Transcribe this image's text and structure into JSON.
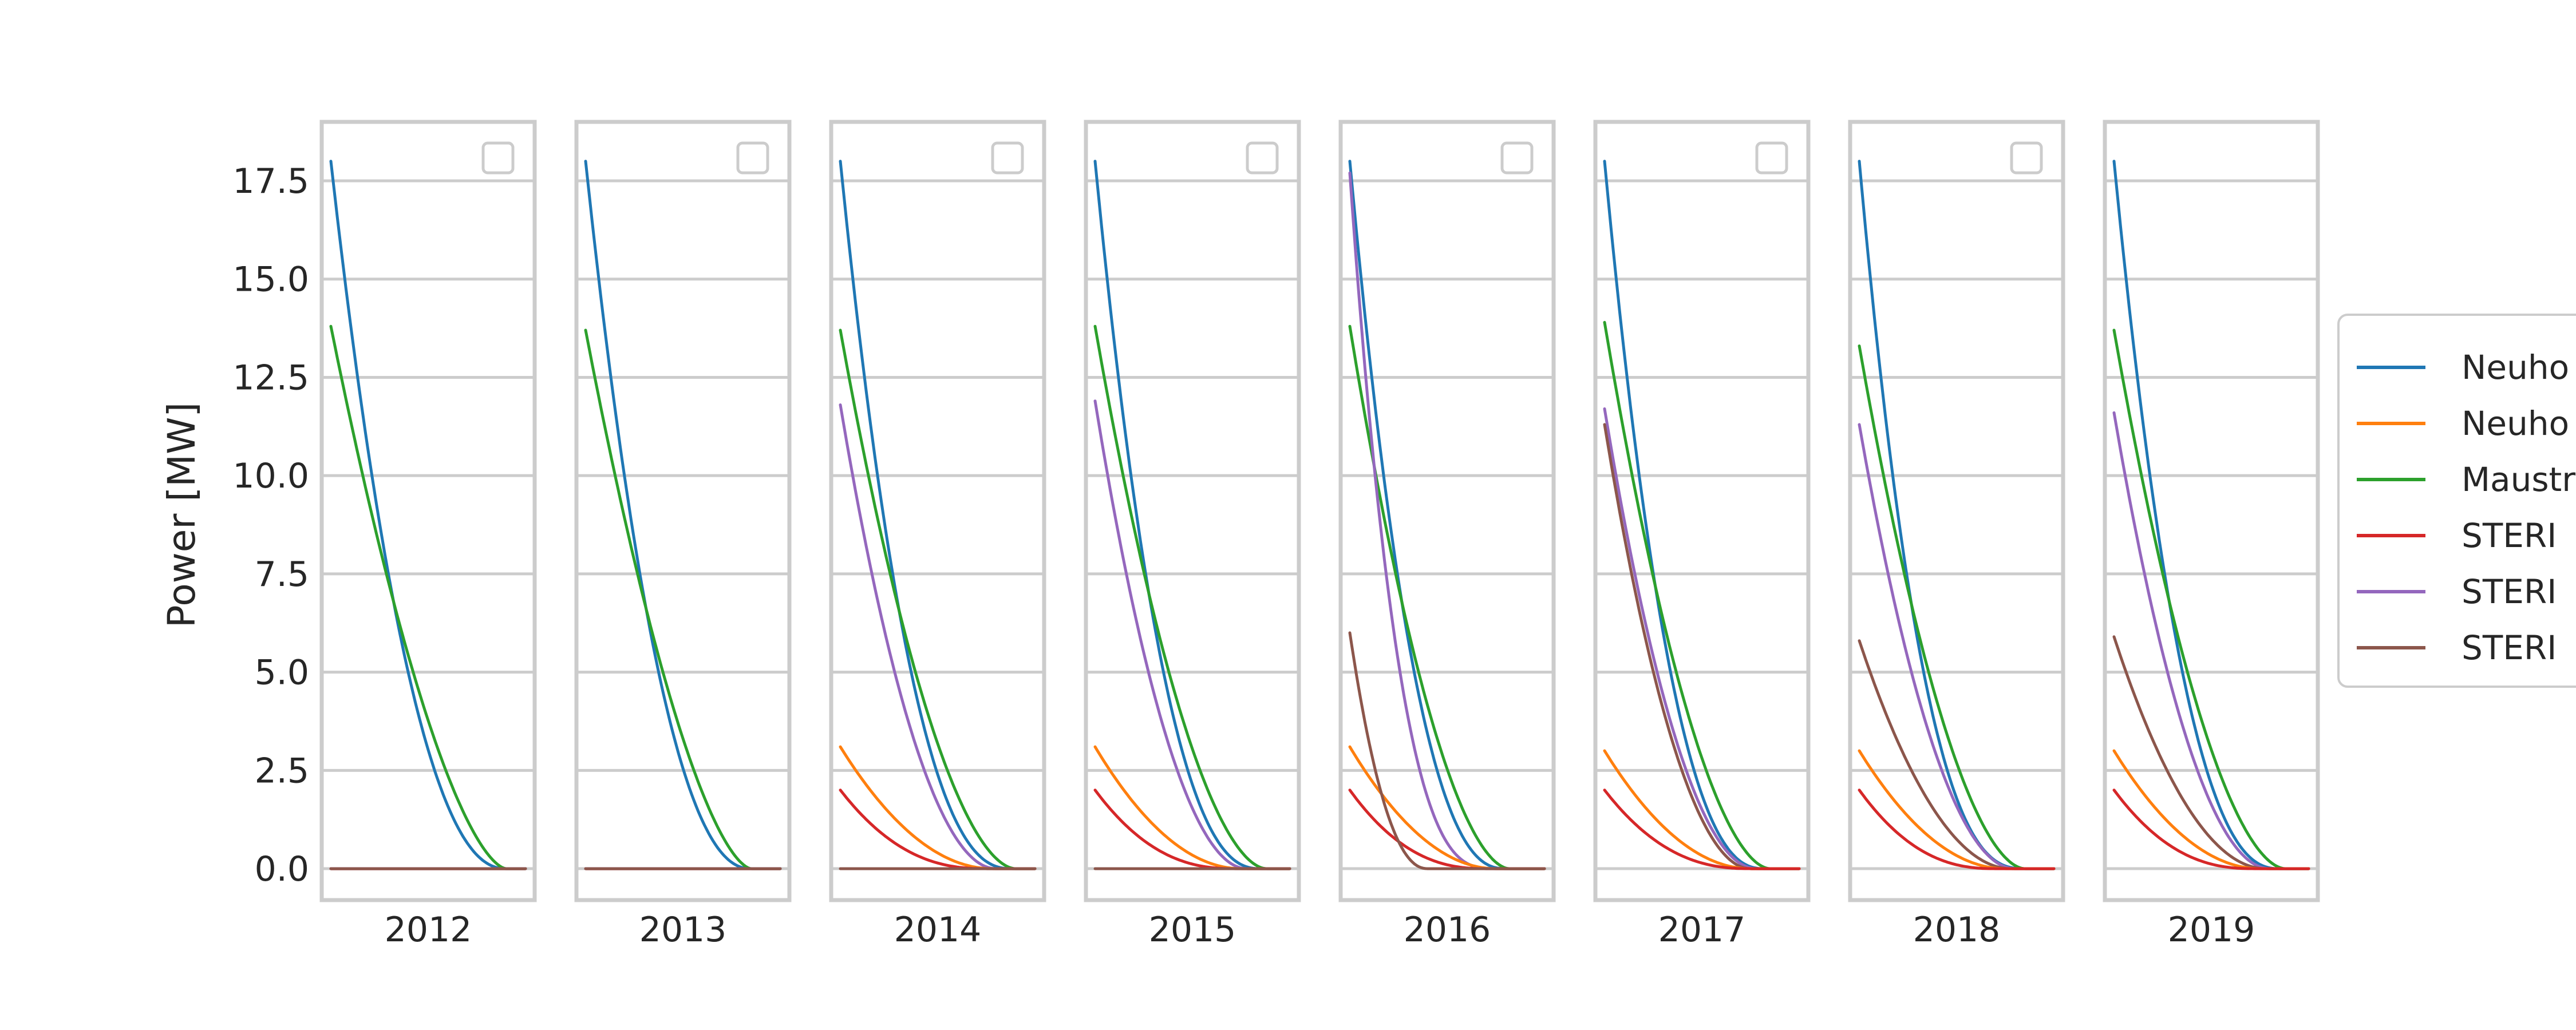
{
  "chart_data": {
    "type": "line",
    "ylabel": "Power [MW]",
    "ylim": [
      -0.8,
      19.0
    ],
    "yticks": [
      "0.0",
      "2.5",
      "5.0",
      "7.5",
      "10.0",
      "12.5",
      "15.0",
      "17.5"
    ],
    "ytick_values": [
      0,
      2.5,
      5,
      7.5,
      10,
      12.5,
      15,
      17.5
    ],
    "grid": true,
    "legend_position": "right",
    "series_styles": [
      {
        "name": "Neuho",
        "color": "#1f77b4"
      },
      {
        "name": "Neuho",
        "color": "#ff7f0e"
      },
      {
        "name": "Maustr",
        "color": "#2ca02c"
      },
      {
        "name": "STERI",
        "color": "#d62728"
      },
      {
        "name": "STERI",
        "color": "#9467bd"
      },
      {
        "name": "STERI",
        "color": "#8c564b"
      }
    ],
    "panels": [
      {
        "label": "2012",
        "curves": [
          {
            "series": 0,
            "start": 18.0,
            "zero_at": 0.9,
            "shape": 2.2
          },
          {
            "series": 2,
            "start": 13.8,
            "zero_at": 0.9,
            "shape": 1.6
          },
          {
            "series": 1,
            "start": 0,
            "zero_at": 1.0,
            "shape": 1
          },
          {
            "series": 3,
            "start": 0,
            "zero_at": 1.0,
            "shape": 1
          },
          {
            "series": 4,
            "start": 0,
            "zero_at": 1.0,
            "shape": 1
          },
          {
            "series": 5,
            "start": 0,
            "zero_at": 1.0,
            "shape": 1
          }
        ]
      },
      {
        "label": "2013",
        "curves": [
          {
            "series": 0,
            "start": 18.0,
            "zero_at": 0.85,
            "shape": 2.2
          },
          {
            "series": 2,
            "start": 13.7,
            "zero_at": 0.85,
            "shape": 1.6
          },
          {
            "series": 1,
            "start": 0,
            "zero_at": 1.0,
            "shape": 1
          },
          {
            "series": 3,
            "start": 0,
            "zero_at": 1.0,
            "shape": 1
          },
          {
            "series": 4,
            "start": 0,
            "zero_at": 1.0,
            "shape": 1
          },
          {
            "series": 5,
            "start": 0,
            "zero_at": 1.0,
            "shape": 1
          }
        ]
      },
      {
        "label": "2014",
        "curves": [
          {
            "series": 0,
            "start": 18.0,
            "zero_at": 0.88,
            "shape": 2.4
          },
          {
            "series": 2,
            "start": 13.7,
            "zero_at": 0.9,
            "shape": 1.8
          },
          {
            "series": 4,
            "start": 11.8,
            "zero_at": 0.8,
            "shape": 2.0
          },
          {
            "series": 1,
            "start": 3.1,
            "zero_at": 0.78,
            "shape": 2.0
          },
          {
            "series": 3,
            "start": 2.0,
            "zero_at": 0.75,
            "shape": 2.4
          },
          {
            "series": 5,
            "start": 0,
            "zero_at": 1.0,
            "shape": 1
          }
        ]
      },
      {
        "label": "2015",
        "curves": [
          {
            "series": 0,
            "start": 18.0,
            "zero_at": 0.85,
            "shape": 2.4
          },
          {
            "series": 2,
            "start": 13.8,
            "zero_at": 0.88,
            "shape": 1.8
          },
          {
            "series": 4,
            "start": 11.9,
            "zero_at": 0.78,
            "shape": 2.0
          },
          {
            "series": 1,
            "start": 3.1,
            "zero_at": 0.75,
            "shape": 2.0
          },
          {
            "series": 3,
            "start": 2.0,
            "zero_at": 0.72,
            "shape": 2.4
          },
          {
            "series": 5,
            "start": 0,
            "zero_at": 1.0,
            "shape": 1
          }
        ]
      },
      {
        "label": "2016",
        "curves": [
          {
            "series": 0,
            "start": 18.0,
            "zero_at": 0.8,
            "shape": 2.4
          },
          {
            "series": 2,
            "start": 13.8,
            "zero_at": 0.82,
            "shape": 1.8
          },
          {
            "series": 4,
            "start": 17.7,
            "zero_at": 0.75,
            "shape": 3.0
          },
          {
            "series": 1,
            "start": 3.1,
            "zero_at": 0.75,
            "shape": 2.0
          },
          {
            "series": 3,
            "start": 2.0,
            "zero_at": 0.7,
            "shape": 2.4
          },
          {
            "series": 5,
            "start": 6.0,
            "zero_at": 0.4,
            "shape": 2.2
          }
        ]
      },
      {
        "label": "2017",
        "curves": [
          {
            "series": 0,
            "start": 18.0,
            "zero_at": 0.82,
            "shape": 2.4
          },
          {
            "series": 2,
            "start": 13.9,
            "zero_at": 0.85,
            "shape": 1.8
          },
          {
            "series": 4,
            "start": 11.7,
            "zero_at": 0.78,
            "shape": 2.0
          },
          {
            "series": 5,
            "start": 11.3,
            "zero_at": 0.75,
            "shape": 2.0
          },
          {
            "series": 1,
            "start": 3.0,
            "zero_at": 0.75,
            "shape": 2.0
          },
          {
            "series": 3,
            "start": 2.0,
            "zero_at": 0.75,
            "shape": 2.4
          }
        ]
      },
      {
        "label": "2018",
        "curves": [
          {
            "series": 0,
            "start": 18.0,
            "zero_at": 0.85,
            "shape": 2.6
          },
          {
            "series": 2,
            "start": 13.3,
            "zero_at": 0.85,
            "shape": 1.8
          },
          {
            "series": 4,
            "start": 11.3,
            "zero_at": 0.8,
            "shape": 2.0
          },
          {
            "series": 5,
            "start": 5.8,
            "zero_at": 0.78,
            "shape": 2.0
          },
          {
            "series": 1,
            "start": 3.0,
            "zero_at": 0.75,
            "shape": 2.0
          },
          {
            "series": 3,
            "start": 2.0,
            "zero_at": 0.7,
            "shape": 2.4
          }
        ]
      },
      {
        "label": "2019",
        "curves": [
          {
            "series": 0,
            "start": 18.0,
            "zero_at": 0.85,
            "shape": 2.4
          },
          {
            "series": 2,
            "start": 13.7,
            "zero_at": 0.88,
            "shape": 1.8
          },
          {
            "series": 4,
            "start": 11.6,
            "zero_at": 0.8,
            "shape": 2.0
          },
          {
            "series": 5,
            "start": 5.9,
            "zero_at": 0.78,
            "shape": 2.0
          },
          {
            "series": 1,
            "start": 3.0,
            "zero_at": 0.75,
            "shape": 2.0
          },
          {
            "series": 3,
            "start": 2.0,
            "zero_at": 0.72,
            "shape": 2.4
          }
        ]
      }
    ]
  }
}
